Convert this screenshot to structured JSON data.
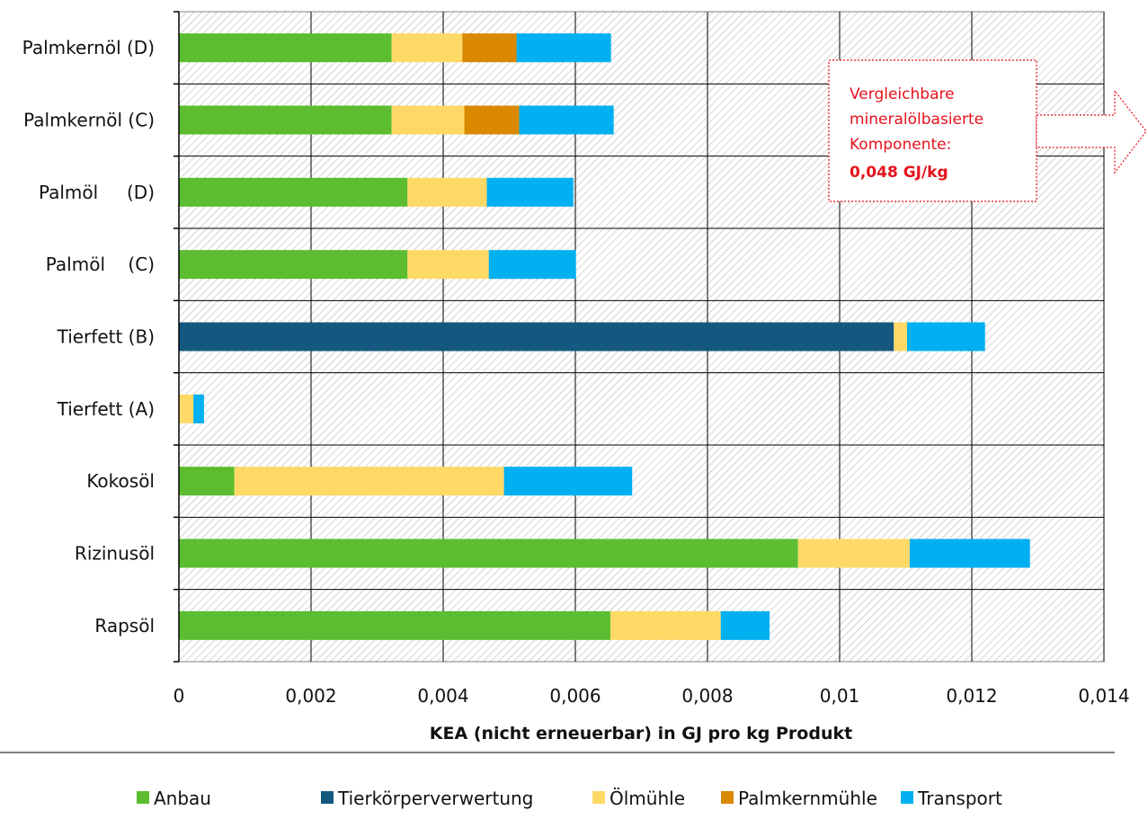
{
  "chart_data": {
    "type": "bar",
    "orientation": "horizontal",
    "stacked": true,
    "categories": [
      "Palmkernöl (D)",
      "Palmkernöl (C)",
      "Palmöl     (D)",
      "Palmöl    (C)",
      "Tierfett (B)",
      "Tierfett (A)",
      "Kokosöl",
      "Rizinusöl",
      "Rapsöl"
    ],
    "series": [
      {
        "name": "Anbau",
        "color": "#5bbd2f",
        "values": [
          0.00322,
          0.00322,
          0.00346,
          0.00346,
          0,
          0,
          0.00084,
          0.00937,
          0.00653
        ]
      },
      {
        "name": "Tierkörperverwertung",
        "color": "#14587f",
        "values": [
          0,
          0,
          0,
          0,
          0.01082,
          0,
          0,
          0,
          0
        ]
      },
      {
        "name": "Ölmühle",
        "color": "#ffd966",
        "values": [
          0.00107,
          0.0011,
          0.0012,
          0.00123,
          0.0002,
          0.00022,
          0.00408,
          0.00169,
          0.00167
        ]
      },
      {
        "name": "Palmkernmühle",
        "color": "#d98800",
        "values": [
          0.00082,
          0.00083,
          0,
          0,
          0,
          0,
          0,
          0,
          0
        ]
      },
      {
        "name": "Transport",
        "color": "#00b0f0",
        "values": [
          0.00143,
          0.00143,
          0.00131,
          0.00132,
          0.00118,
          0.00016,
          0.00194,
          0.00182,
          0.00074
        ]
      }
    ],
    "xticks": [
      "0",
      "0,002",
      "0,004",
      "0,006",
      "0,008",
      "0,01",
      "0,012",
      "0,014"
    ],
    "xlim": [
      0,
      0.014
    ],
    "xlabel": "KEA (nicht erneuerbar) in GJ pro kg Produkt",
    "grid": true,
    "legend_position": "bottom",
    "annotation": {
      "lines": [
        "Vergleichbare",
        "mineralölbasierte",
        "Komponente:"
      ],
      "value": "0,048 GJ/kg"
    }
  }
}
